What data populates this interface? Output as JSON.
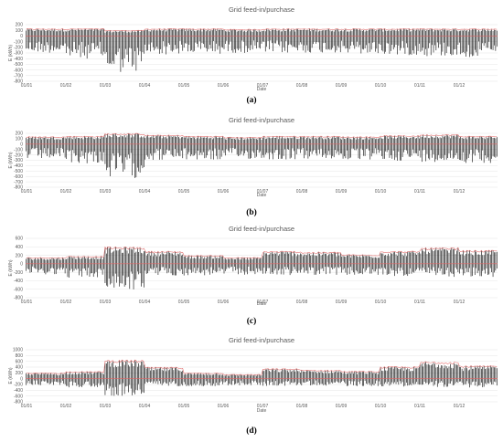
{
  "chart_data": [
    {
      "type": "bar",
      "panel_label": "(a)",
      "title": "Grid feed-in/purchase",
      "xlabel": "Date",
      "ylabel": "E (kWh)",
      "ylim": [
        -800,
        200
      ],
      "yticks": [
        200,
        100,
        0,
        -100,
        -200,
        -300,
        -400,
        -500,
        -600,
        -700,
        -800
      ],
      "x_tick_labels": [
        "01/01",
        "01/02",
        "01/03",
        "01/04",
        "01/05",
        "01/06",
        "01/07",
        "01/08",
        "01/09",
        "01/10",
        "01/11",
        "01/12"
      ],
      "grid": true,
      "limit_line": 0,
      "series": [
        {
          "kind": "daily bars",
          "color": "#000000",
          "monthly_min": [
            -300,
            -400,
            -650,
            -330,
            -320,
            -300,
            -310,
            -300,
            -330,
            -340,
            -360,
            -380
          ],
          "monthly_max": [
            130,
            130,
            100,
            130,
            130,
            120,
            130,
            130,
            130,
            130,
            130,
            130
          ]
        },
        {
          "kind": "upper envelope",
          "color": "#e06666",
          "monthly_values": [
            130,
            130,
            100,
            130,
            130,
            120,
            130,
            130,
            130,
            130,
            130,
            130
          ]
        }
      ]
    },
    {
      "type": "bar",
      "panel_label": "(b)",
      "title": "Grid feed-in/purchase",
      "xlabel": "Date",
      "ylabel": "E (kWh)",
      "ylim": [
        -800,
        200
      ],
      "yticks": [
        200,
        100,
        0,
        -100,
        -200,
        -300,
        -400,
        -500,
        -600,
        -700,
        -800
      ],
      "x_tick_labels": [
        "01/01",
        "01/02",
        "01/03",
        "01/04",
        "01/05",
        "01/06",
        "01/07",
        "01/08",
        "01/09",
        "01/10",
        "01/11",
        "01/12"
      ],
      "grid": true,
      "limit_line": 0,
      "series": [
        {
          "kind": "daily bars",
          "color": "#000000",
          "monthly_min": [
            -280,
            -360,
            -630,
            -300,
            -300,
            -280,
            -290,
            -280,
            -300,
            -310,
            -330,
            -350
          ],
          "monthly_max": [
            140,
            150,
            200,
            170,
            150,
            130,
            150,
            150,
            140,
            160,
            180,
            150
          ]
        },
        {
          "kind": "upper envelope",
          "color": "#e06666",
          "monthly_values": [
            140,
            150,
            200,
            170,
            150,
            130,
            150,
            150,
            140,
            160,
            180,
            150
          ]
        }
      ]
    },
    {
      "type": "bar",
      "panel_label": "(c)",
      "title": "Grid feed-in/purchase",
      "xlabel": "Date",
      "ylabel": "E (kWh)",
      "ylim": [
        -800,
        600
      ],
      "yticks": [
        600,
        400,
        200,
        0,
        -200,
        -400,
        -600,
        -800
      ],
      "x_tick_labels": [
        "01/01",
        "01/02",
        "01/03",
        "01/04",
        "01/05",
        "01/06",
        "01/07",
        "01/08",
        "01/09",
        "01/10",
        "01/11",
        "01/12"
      ],
      "grid": true,
      "limit_line": 0,
      "series": [
        {
          "kind": "daily bars",
          "color": "#000000",
          "monthly_min": [
            -250,
            -330,
            -620,
            -280,
            -280,
            -260,
            -270,
            -260,
            -280,
            -290,
            -310,
            -330
          ],
          "monthly_max": [
            150,
            180,
            400,
            300,
            200,
            150,
            300,
            280,
            220,
            300,
            380,
            320
          ]
        },
        {
          "kind": "upper envelope",
          "color": "#e06666",
          "monthly_values": [
            150,
            180,
            400,
            300,
            200,
            150,
            300,
            280,
            220,
            300,
            380,
            320
          ]
        }
      ]
    },
    {
      "type": "bar",
      "panel_label": "(d)",
      "title": "Grid feed-in/purchase",
      "xlabel": "Date",
      "ylabel": "E (kWh)",
      "ylim": [
        -800,
        1000
      ],
      "yticks": [
        1000,
        800,
        600,
        400,
        200,
        0,
        -200,
        -400,
        -600,
        -800
      ],
      "x_tick_labels": [
        "01/01",
        "01/02",
        "01/03",
        "01/04",
        "01/05",
        "01/06",
        "01/07",
        "01/08",
        "01/09",
        "01/10",
        "01/11",
        "01/12"
      ],
      "grid": true,
      "limit_line": 0,
      "series": [
        {
          "kind": "daily bars",
          "color": "#000000",
          "monthly_min": [
            -230,
            -300,
            -600,
            -260,
            -260,
            -240,
            -250,
            -240,
            -260,
            -270,
            -290,
            -310
          ],
          "monthly_max": [
            200,
            250,
            650,
            400,
            200,
            150,
            350,
            300,
            260,
            420,
            600,
            450
          ]
        },
        {
          "kind": "upper envelope",
          "color": "#e06666",
          "monthly_values": [
            200,
            250,
            650,
            400,
            200,
            150,
            350,
            300,
            260,
            420,
            600,
            450
          ]
        }
      ]
    }
  ]
}
